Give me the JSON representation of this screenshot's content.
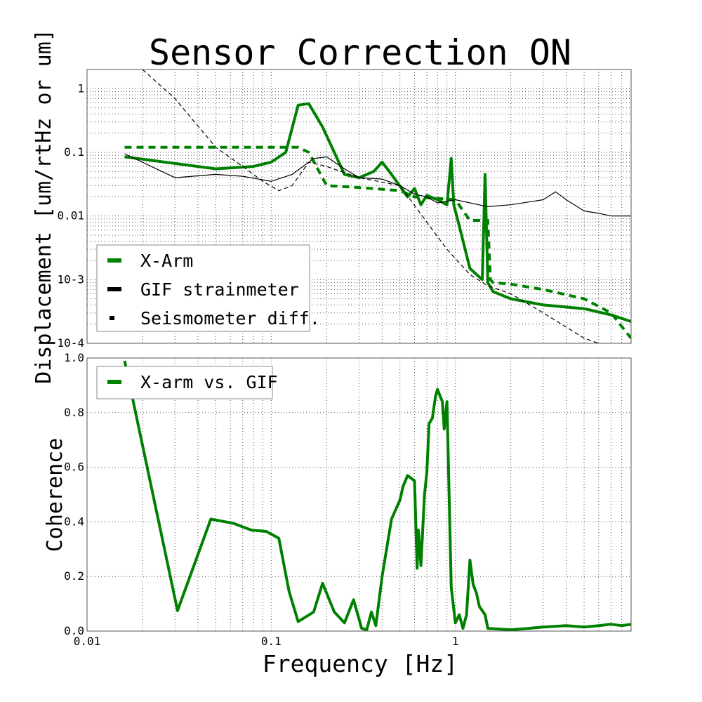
{
  "colors": {
    "green": "#008000",
    "black": "#000000",
    "grid": "#555555"
  },
  "chart_data": [
    {
      "type": "line",
      "title": "Sensor Correction ON",
      "xlabel": "",
      "ylabel": "Displacement [um/rtHz or um]",
      "xscale": "log",
      "yscale": "log",
      "xlim": [
        0.01,
        9
      ],
      "ylim": [
        0.0001,
        2
      ],
      "grid": true,
      "legend_position": "bottom-left",
      "x_ticks": [
        0.01,
        0.1,
        1
      ],
      "x_tick_labels": [
        "",
        "",
        ""
      ],
      "y_ticks": [
        0.0001,
        0.001,
        0.01,
        0.1,
        1
      ],
      "y_tick_labels": [
        "10-4",
        "10-3",
        "0.01",
        "0.1",
        "1"
      ],
      "series": [
        {
          "name": "X-Arm",
          "color": "#008000",
          "style": "solid",
          "x": [
            0.016,
            0.05,
            0.08,
            0.1,
            0.12,
            0.14,
            0.16,
            0.19,
            0.25,
            0.3,
            0.36,
            0.4,
            0.45,
            0.55,
            0.6,
            0.65,
            0.7,
            0.8,
            0.9,
            0.95,
            0.98,
            1.05,
            1.2,
            1.4,
            1.45,
            1.5,
            1.6,
            2,
            3,
            5,
            7,
            9
          ],
          "y": [
            0.085,
            0.055,
            0.06,
            0.07,
            0.1,
            0.55,
            0.58,
            0.25,
            0.045,
            0.04,
            0.05,
            0.07,
            0.045,
            0.02,
            0.027,
            0.015,
            0.021,
            0.018,
            0.015,
            0.08,
            0.015,
            0.007,
            0.0015,
            0.001,
            0.045,
            0.0009,
            0.00065,
            0.0005,
            0.0004,
            0.00035,
            0.00028,
            0.00022
          ]
        },
        {
          "name": "",
          "color": "#008000",
          "style": "dashed",
          "x": [
            0.016,
            0.14,
            0.16,
            0.2,
            0.3,
            0.5,
            0.6,
            1.0,
            1.2,
            1.5,
            1.55,
            1.6,
            2,
            3,
            5,
            7,
            9
          ],
          "y": [
            0.12,
            0.12,
            0.1,
            0.03,
            0.028,
            0.025,
            0.02,
            0.018,
            0.0085,
            0.0085,
            0.001,
            0.0009,
            0.00085,
            0.0007,
            0.0005,
            0.0003,
            0.00012
          ]
        },
        {
          "name": "GIF strainmeter",
          "color": "#000000",
          "style": "solid",
          "x": [
            0.016,
            0.03,
            0.05,
            0.07,
            0.1,
            0.13,
            0.17,
            0.2,
            0.25,
            0.3,
            0.4,
            0.5,
            0.6,
            0.7,
            0.8,
            1,
            1.5,
            2,
            3,
            3.5,
            4,
            5,
            6,
            7,
            9
          ],
          "y": [
            0.095,
            0.04,
            0.045,
            0.042,
            0.035,
            0.045,
            0.08,
            0.085,
            0.055,
            0.04,
            0.038,
            0.03,
            0.022,
            0.02,
            0.016,
            0.018,
            0.014,
            0.015,
            0.018,
            0.024,
            0.018,
            0.012,
            0.011,
            0.01,
            0.01
          ]
        },
        {
          "name": "Seismometer diff.",
          "color": "#000000",
          "style": "dashed",
          "x": [
            0.02,
            0.03,
            0.05,
            0.07,
            0.09,
            0.11,
            0.13,
            0.16,
            0.2,
            0.3,
            0.5,
            0.7,
            0.9,
            1.2,
            1.5,
            2,
            3,
            4,
            5,
            6
          ],
          "y": [
            2,
            0.7,
            0.12,
            0.06,
            0.035,
            0.025,
            0.03,
            0.07,
            0.06,
            0.04,
            0.03,
            0.008,
            0.003,
            0.0012,
            0.0008,
            0.0006,
            0.0003,
            0.00018,
            0.00012,
            0.0001
          ]
        }
      ]
    },
    {
      "type": "line",
      "title": "",
      "xlabel": "Frequency [Hz]",
      "ylabel": "Coherence",
      "xscale": "log",
      "yscale": "linear",
      "xlim": [
        0.01,
        9
      ],
      "ylim": [
        0,
        1
      ],
      "grid": true,
      "legend_position": "top-left",
      "x_ticks": [
        0.01,
        0.1,
        1
      ],
      "x_tick_labels": [
        "0.01",
        "0.1",
        "1"
      ],
      "y_ticks": [
        0,
        0.2,
        0.4,
        0.6,
        0.8,
        1.0
      ],
      "y_tick_labels": [
        "0.0",
        "0.2",
        "0.4",
        "0.6",
        "0.8",
        "1.0"
      ],
      "series": [
        {
          "name": "X-arm vs. GIF",
          "color": "#008000",
          "style": "solid",
          "x": [
            0.016,
            0.031,
            0.047,
            0.062,
            0.078,
            0.094,
            0.11,
            0.125,
            0.14,
            0.17,
            0.19,
            0.22,
            0.25,
            0.28,
            0.31,
            0.33,
            0.35,
            0.37,
            0.4,
            0.45,
            0.5,
            0.52,
            0.55,
            0.6,
            0.62,
            0.63,
            0.65,
            0.68,
            0.7,
            0.72,
            0.75,
            0.78,
            0.8,
            0.85,
            0.87,
            0.9,
            0.95,
            1.0,
            1.05,
            1.1,
            1.15,
            1.2,
            1.25,
            1.3,
            1.35,
            1.45,
            1.5,
            2,
            2.5,
            3,
            4,
            5,
            6,
            7,
            8,
            9
          ],
          "y": [
            0.99,
            0.075,
            0.41,
            0.395,
            0.37,
            0.365,
            0.34,
            0.145,
            0.035,
            0.07,
            0.175,
            0.07,
            0.03,
            0.115,
            0.01,
            0.005,
            0.07,
            0.02,
            0.2,
            0.41,
            0.48,
            0.53,
            0.57,
            0.55,
            0.23,
            0.37,
            0.24,
            0.5,
            0.58,
            0.76,
            0.78,
            0.86,
            0.885,
            0.84,
            0.74,
            0.84,
            0.16,
            0.03,
            0.06,
            0.01,
            0.06,
            0.26,
            0.17,
            0.14,
            0.09,
            0.06,
            0.01,
            0.005,
            0.01,
            0.015,
            0.02,
            0.015,
            0.02,
            0.025,
            0.02,
            0.025
          ]
        }
      ]
    }
  ]
}
